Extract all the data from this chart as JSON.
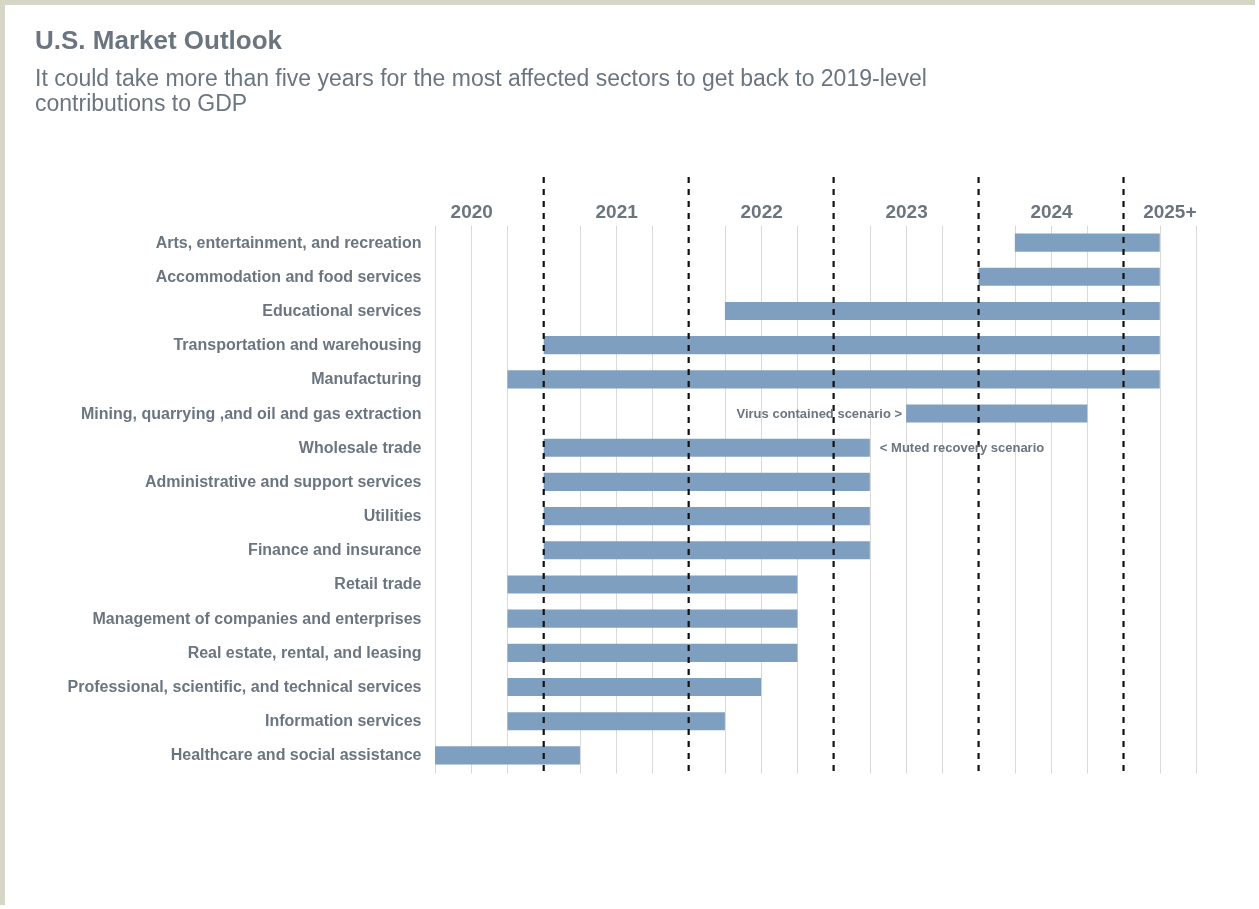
{
  "chart_data": {
    "type": "bar",
    "orientation": "horizontal",
    "title": "U.S. Market Outlook",
    "subtitle": "It could take more than five years for the most affected sectors to get back to 2019-level contributions to GDP",
    "categories": [
      "Arts, entertainment, and recreation",
      "Accommodation and food services",
      "Educational services",
      "Transportation and warehousing",
      "Manufacturing",
      "Mining, quarrying ,and oil and gas extraction",
      "Wholesale trade",
      "Administrative and support services",
      "Utilities",
      "Finance and insurance",
      "Retail trade",
      "Management of companies and enterprises",
      "Real estate, rental, and leasing",
      "Professional, scientific, and technical services",
      "Information services",
      "Healthcare and social assistance"
    ],
    "base": [
      2023.75,
      2023.5,
      2021.75,
      2020.5,
      2020.25,
      2023.0,
      2020.5,
      2020.5,
      2020.5,
      2020.5,
      2020.25,
      2020.25,
      2020.25,
      2020.25,
      2020.25,
      2019.75
    ],
    "values": [
      1.0,
      1.25,
      3.0,
      4.25,
      4.5,
      1.25,
      2.25,
      2.25,
      2.25,
      2.25,
      2.0,
      2.0,
      2.0,
      1.75,
      1.5,
      1.0
    ],
    "color": "#7f9fc0",
    "xlim": [
      2019.75,
      2025
    ],
    "xticks": [
      {
        "value": 2019.75,
        "label": null
      },
      2020,
      {
        "value": 2020.25,
        "label": null
      },
      {
        "value": 2020.75,
        "label": null
      },
      2021,
      {
        "value": 2021.25,
        "label": null
      },
      {
        "value": 2021.75,
        "label": null
      },
      2022,
      {
        "value": 2022.25,
        "label": null
      },
      {
        "value": 2022.75,
        "label": null
      },
      2023,
      {
        "value": 2023.25,
        "label": null
      },
      {
        "value": 2023.75,
        "label": null
      },
      2024,
      {
        "value": 2024.25,
        "label": null
      },
      {
        "value": 2024.75,
        "label": null
      },
      {
        "value": 2025,
        "label": "2025+"
      }
    ],
    "grid": "x",
    "ref_lines": [
      {
        "axis": "x",
        "value": 2020.5,
        "color": "#111111",
        "line_style": "dashed"
      },
      {
        "axis": "x",
        "value": 2021.5,
        "color": "#111111",
        "line_style": "dashed"
      },
      {
        "axis": "x",
        "value": 2022.5,
        "color": "#111111",
        "line_style": "dashed"
      },
      {
        "axis": "x",
        "value": 2023.5,
        "color": "#111111",
        "line_style": "dashed"
      },
      {
        "axis": "x",
        "value": 2024.5,
        "color": "#111111",
        "line_style": "dashed"
      }
    ],
    "annotations": [
      {
        "text": "Virus contained scenario >",
        "x": 2023.0,
        "y": "Mining, quarrying ,and oil and gas extraction"
      },
      {
        "text": "< Muted recovery scenario",
        "x": 2022.75,
        "y": "Wholesale trade"
      }
    ]
  }
}
